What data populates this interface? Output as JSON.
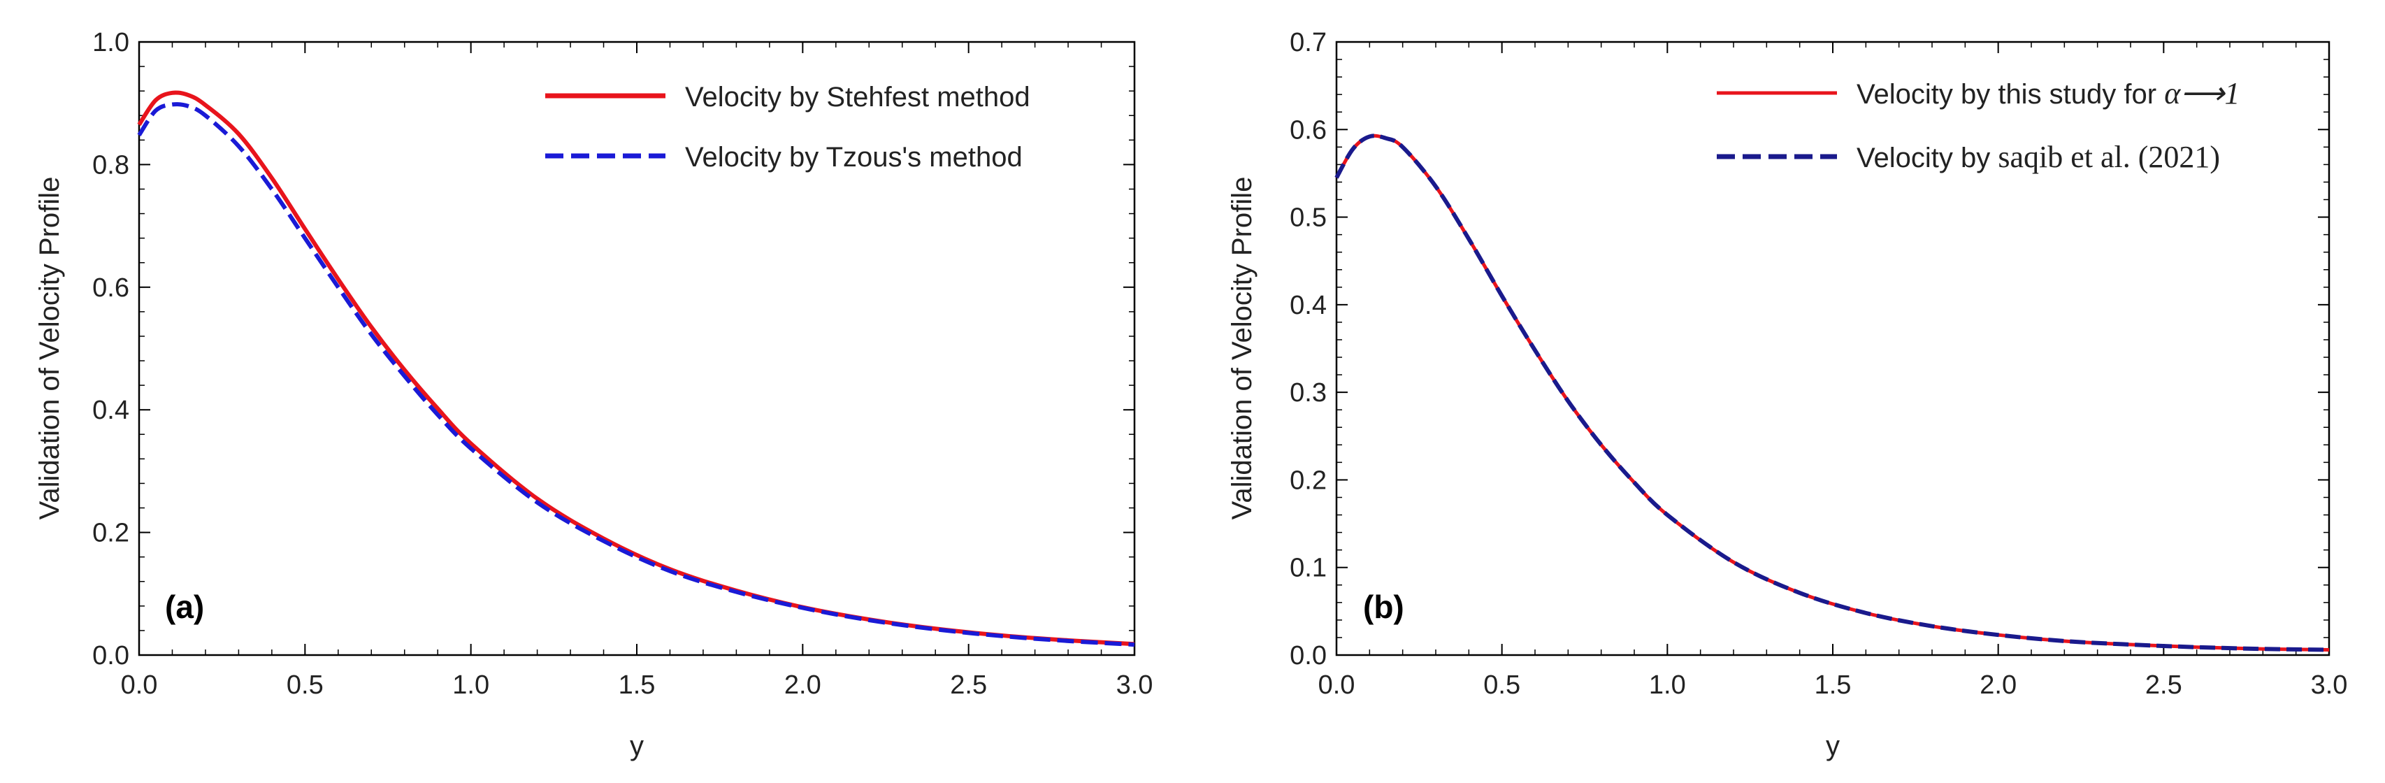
{
  "chart_data": [
    {
      "type": "line",
      "panel": "(a)",
      "xlabel": "y",
      "ylabel": "Validation of Velocity Profile",
      "xlim": [
        0,
        3.0
      ],
      "ylim": [
        0,
        1.0
      ],
      "xticks": [
        "0.0",
        "0.5",
        "1.0",
        "1.5",
        "2.0",
        "2.5",
        "3.0"
      ],
      "yticks": [
        "0.0",
        "0.2",
        "0.4",
        "0.6",
        "0.8",
        "1.0"
      ],
      "grid": false,
      "legend_position": "top-right",
      "x": [
        0.0,
        0.05,
        0.1,
        0.15,
        0.2,
        0.3,
        0.4,
        0.5,
        0.6,
        0.7,
        0.8,
        0.9,
        1.0,
        1.2,
        1.4,
        1.6,
        1.8,
        2.0,
        2.2,
        2.4,
        2.6,
        2.8,
        3.0
      ],
      "series": [
        {
          "name": "Velocity by Stehfest method",
          "legend_label": "Velocity by Stehfest method",
          "color": "#e8141c",
          "dash": "solid",
          "values": [
            0.865,
            0.905,
            0.917,
            0.913,
            0.897,
            0.85,
            0.778,
            0.695,
            0.613,
            0.535,
            0.465,
            0.402,
            0.345,
            0.255,
            0.19,
            0.14,
            0.105,
            0.078,
            0.058,
            0.043,
            0.032,
            0.024,
            0.018
          ]
        },
        {
          "name": "Velocity by Tzous's method",
          "legend_label": "Velocity by Tzous's method",
          "color": "#1a1ad6",
          "dash": "dashed",
          "values": [
            0.848,
            0.888,
            0.898,
            0.895,
            0.88,
            0.83,
            0.76,
            0.68,
            0.6,
            0.523,
            0.455,
            0.392,
            0.337,
            0.249,
            0.186,
            0.137,
            0.103,
            0.077,
            0.057,
            0.042,
            0.031,
            0.023,
            0.017
          ]
        }
      ]
    },
    {
      "type": "line",
      "panel": "(b)",
      "xlabel": "y",
      "ylabel": "Validation of Velocity Profile",
      "xlim": [
        0,
        3.0
      ],
      "ylim": [
        0,
        0.7
      ],
      "xticks": [
        "0.0",
        "0.5",
        "1.0",
        "1.5",
        "2.0",
        "2.5",
        "3.0"
      ],
      "yticks": [
        "0.0",
        "0.1",
        "0.2",
        "0.3",
        "0.4",
        "0.5",
        "0.6",
        "0.7"
      ],
      "grid": false,
      "legend_position": "top-right",
      "x": [
        0.0,
        0.05,
        0.1,
        0.15,
        0.2,
        0.3,
        0.4,
        0.5,
        0.6,
        0.7,
        0.8,
        0.9,
        1.0,
        1.2,
        1.4,
        1.6,
        1.8,
        2.0,
        2.2,
        2.4,
        2.6,
        2.8,
        3.0
      ],
      "series": [
        {
          "name": "Velocity by this study for α→1",
          "legend_label": "Velocity by this study for ",
          "legend_symbol": "α⟶1",
          "color": "#e8141c",
          "dash": "solid",
          "values": [
            0.545,
            0.578,
            0.592,
            0.59,
            0.58,
            0.535,
            0.475,
            0.41,
            0.348,
            0.29,
            0.24,
            0.197,
            0.16,
            0.106,
            0.071,
            0.048,
            0.033,
            0.023,
            0.016,
            0.012,
            0.009,
            0.007,
            0.006
          ]
        },
        {
          "name": "Velocity by saqib et al. (2021)",
          "legend_label": "Velocity by ",
          "legend_serif": "saqib et al. (2021)",
          "color": "#1a1a8c",
          "dash": "dashed",
          "values": [
            0.545,
            0.578,
            0.592,
            0.59,
            0.58,
            0.535,
            0.475,
            0.41,
            0.348,
            0.29,
            0.24,
            0.197,
            0.16,
            0.106,
            0.071,
            0.048,
            0.033,
            0.023,
            0.016,
            0.012,
            0.009,
            0.007,
            0.006
          ]
        }
      ]
    }
  ]
}
